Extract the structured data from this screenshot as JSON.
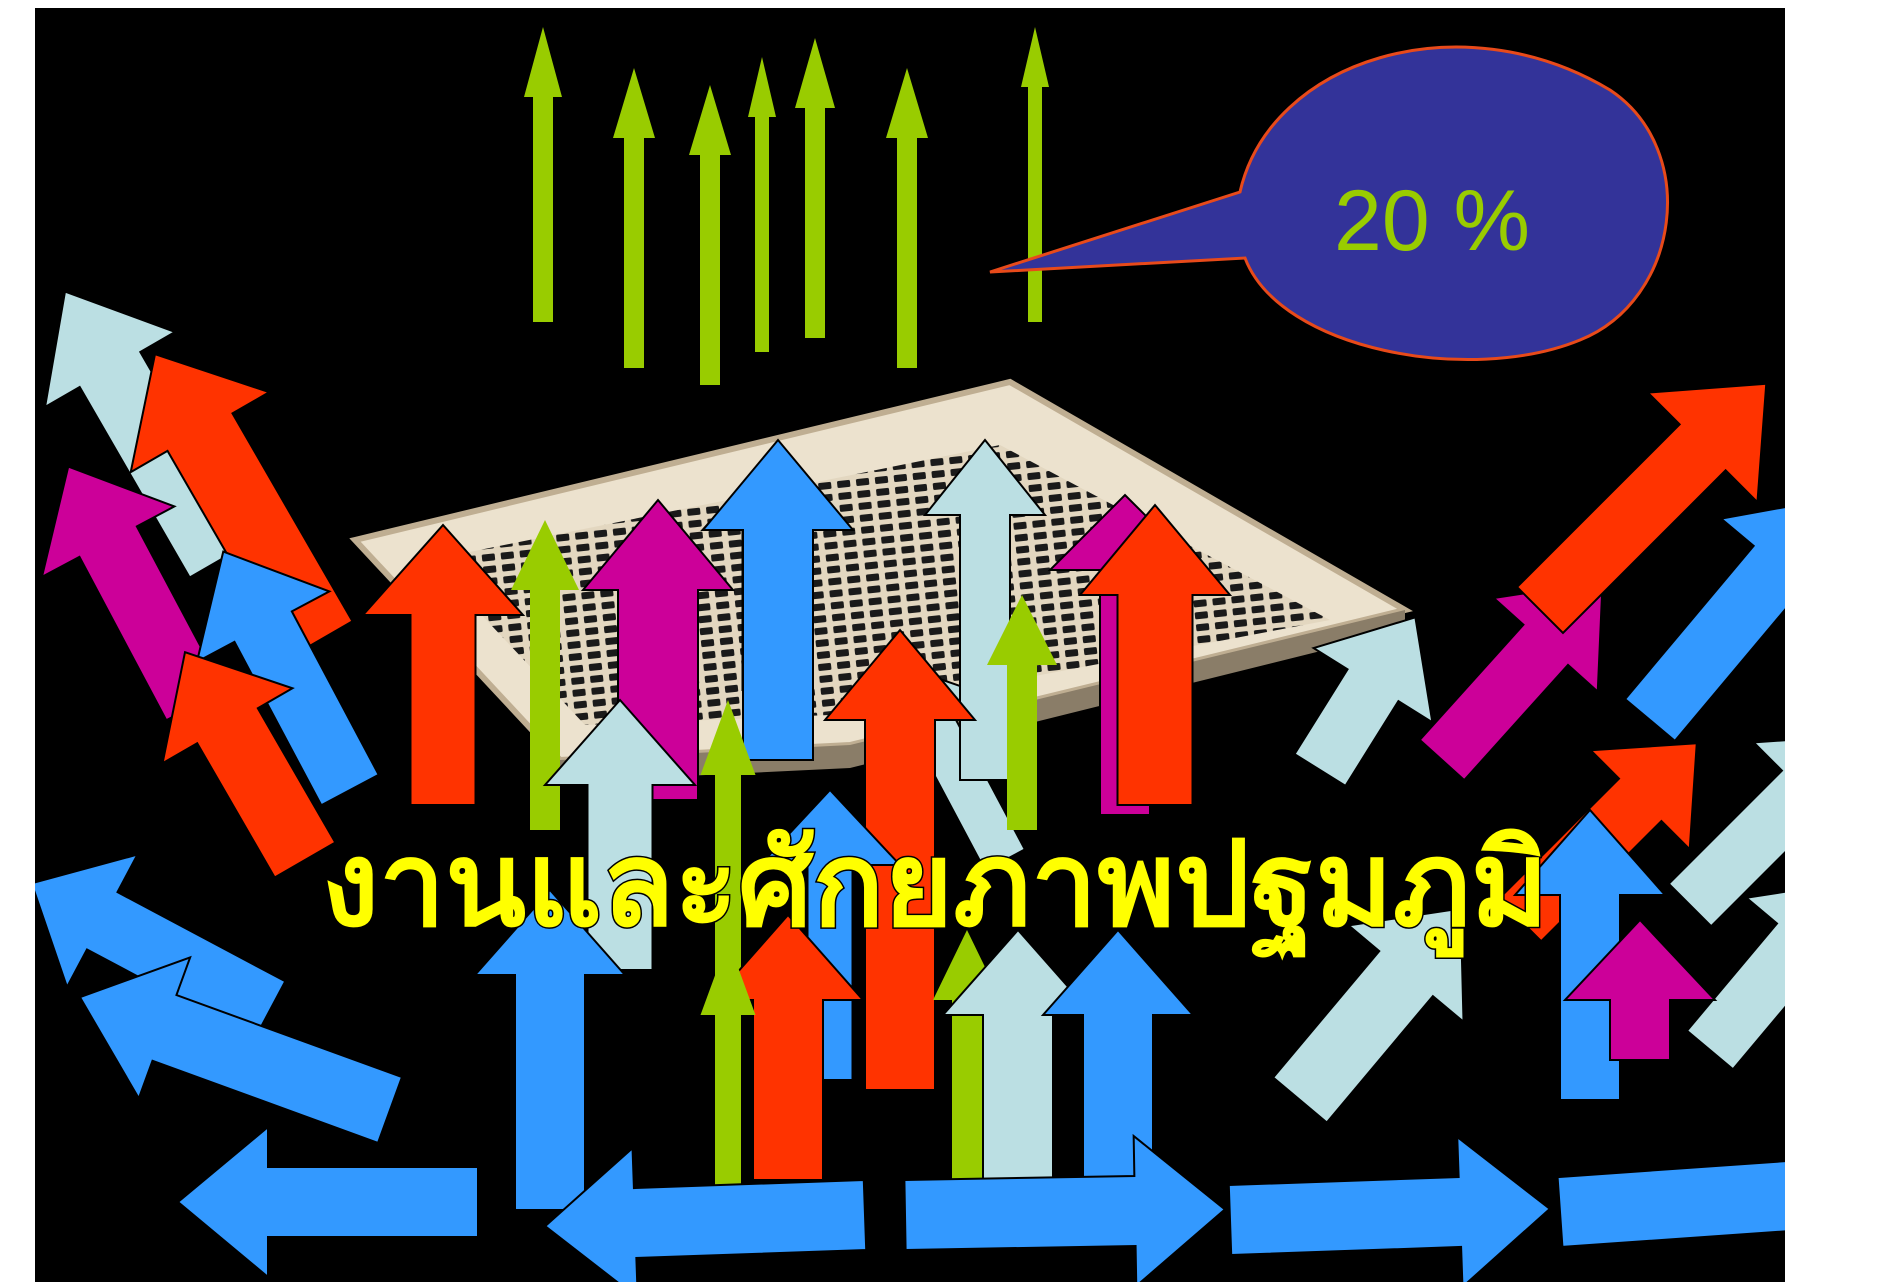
{
  "title": "งานและศักยภาพปฐมภูมิ",
  "callout": {
    "text": "20 %"
  },
  "colors": {
    "background": "#000000",
    "title": "#ffff00",
    "callout_fill": "#333399",
    "callout_stroke": "#e84a1a",
    "callout_text": "#99cc00",
    "arrow_green": "#99cc00",
    "arrow_red": "#ff3300",
    "arrow_magenta": "#cc0099",
    "arrow_blue": "#3399ff",
    "arrow_light": "#bbdfe3",
    "panel": "#e8dcc6"
  },
  "graphics": {
    "central_object": "ceiling-vent-panel",
    "arrow_colors": [
      "green",
      "red",
      "magenta",
      "blue",
      "light-blue"
    ]
  }
}
